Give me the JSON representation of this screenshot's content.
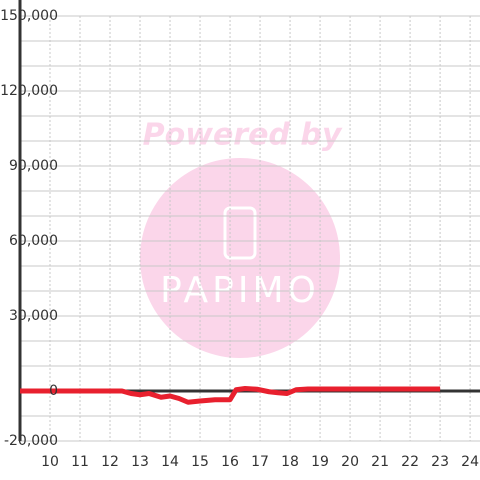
{
  "chart_data": {
    "type": "line",
    "watermark": {
      "top": "Powered by",
      "logo": "PAPIMO"
    },
    "x": [
      9,
      12.4,
      12.7,
      13,
      13.3,
      13.7,
      14,
      14.3,
      14.6,
      15,
      15.5,
      16,
      16.2,
      16.5,
      16.9,
      17.3,
      17.6,
      17.9,
      18.2,
      18.6,
      23
    ],
    "series": [
      {
        "color": "#e8202e",
        "values": [
          0,
          0,
          -1000,
          -1500,
          -1000,
          -2500,
          -2000,
          -3000,
          -4500,
          -4000,
          -3500,
          -3500,
          500,
          1000,
          700,
          -300,
          -700,
          -1000,
          500,
          800,
          800
        ]
      }
    ],
    "xlim": [
      9,
      24.33
    ],
    "xticks": [
      10,
      11,
      12,
      13,
      14,
      15,
      16,
      17,
      18,
      19,
      20,
      21,
      22,
      23,
      24
    ],
    "ylim": [
      -20000,
      150000
    ],
    "yticks": [
      {
        "value": -20000,
        "label": "-20,000"
      },
      0,
      {
        "value": 30000,
        "label": "30,000"
      },
      {
        "value": 60000,
        "label": "60,000"
      },
      {
        "value": 90000,
        "label": "90,000"
      },
      {
        "value": 120000,
        "label": "120,000"
      },
      {
        "value": 150000,
        "label": "150,000"
      }
    ],
    "yminor": [
      -10000,
      10000,
      20000,
      40000,
      50000,
      70000,
      80000,
      100000,
      110000,
      130000,
      140000
    ],
    "grid": true
  }
}
